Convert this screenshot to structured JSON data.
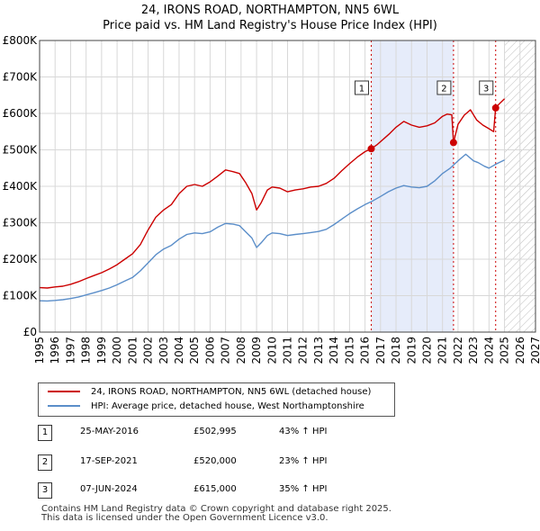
{
  "title": {
    "line1": "24, IRONS ROAD, NORTHAMPTON, NN5 6WL",
    "line2": "Price paid vs. HM Land Registry's House Price Index (HPI)"
  },
  "legend": {
    "property_label": "24, IRONS ROAD, NORTHAMPTON, NN5 6WL (detached house)",
    "hpi_label": "HPI: Average price, detached house, West Northamptonshire"
  },
  "sales": [
    {
      "num": "1",
      "date": "25-MAY-2016",
      "price": "£502,995",
      "hpi": "43% ↑ HPI"
    },
    {
      "num": "2",
      "date": "17-SEP-2021",
      "price": "£520,000",
      "hpi": "23% ↑ HPI"
    },
    {
      "num": "3",
      "date": "07-JUN-2024",
      "price": "£615,000",
      "hpi": "35% ↑ HPI"
    }
  ],
  "footer": {
    "line1": "Contains HM Land Registry data © Crown copyright and database right 2025.",
    "line2": "This data is licensed under the Open Government Licence v3.0."
  },
  "colors": {
    "property": "#cc0000",
    "hpi": "#5b8ec9",
    "shade": "#e6ecfa",
    "grid": "#d8d8d8",
    "marker": "#cc0000"
  },
  "chart_data": {
    "type": "line",
    "title": "Price paid vs. HM Land Registry's House Price Index (HPI)",
    "xlim": [
      1995,
      2027
    ],
    "ylim": [
      0,
      800000
    ],
    "x_ticks": [
      1995,
      1996,
      1997,
      1998,
      1999,
      2000,
      2001,
      2002,
      2003,
      2004,
      2005,
      2006,
      2007,
      2008,
      2009,
      2010,
      2011,
      2012,
      2013,
      2014,
      2015,
      2016,
      2017,
      2018,
      2019,
      2020,
      2021,
      2022,
      2023,
      2024,
      2025,
      2026,
      2027
    ],
    "y_ticks": [
      0,
      100000,
      200000,
      300000,
      400000,
      500000,
      600000,
      700000,
      800000
    ],
    "y_tick_labels": [
      "£0",
      "£100K",
      "£200K",
      "£300K",
      "£400K",
      "£500K",
      "£600K",
      "£700K",
      "£800K"
    ],
    "shaded_region": [
      2016.4,
      2021.71
    ],
    "future_hatch_from": 2025.0,
    "series": [
      {
        "name": "24, IRONS ROAD, NORTHAMPTON, NN5 6WL (detached house)",
        "x": [
          1995,
          1995.5,
          1996,
          1996.5,
          1997,
          1997.5,
          1998,
          1998.5,
          1999,
          1999.5,
          2000,
          2000.5,
          2001,
          2001.5,
          2002,
          2002.5,
          2003,
          2003.5,
          2004,
          2004.5,
          2005,
          2005.5,
          2006,
          2006.5,
          2007,
          2007.5,
          2007.9,
          2008.3,
          2008.7,
          2009.0,
          2009.3,
          2009.7,
          2010,
          2010.5,
          2011,
          2011.5,
          2012,
          2012.5,
          2013,
          2013.5,
          2014,
          2014.5,
          2015,
          2015.5,
          2016,
          2016.4,
          2016.8,
          2017.2,
          2017.6,
          2018,
          2018.5,
          2019,
          2019.5,
          2020,
          2020.5,
          2021,
          2021.3,
          2021.6,
          2021.71,
          2022,
          2022.4,
          2022.8,
          2023.2,
          2023.6,
          2024,
          2024.3,
          2024.43,
          2024.7,
          2025.0
        ],
        "values": [
          122000,
          121000,
          124000,
          126000,
          131000,
          138000,
          147000,
          155000,
          163000,
          173000,
          185000,
          200000,
          215000,
          240000,
          280000,
          315000,
          335000,
          350000,
          380000,
          400000,
          405000,
          400000,
          412000,
          428000,
          445000,
          440000,
          435000,
          410000,
          380000,
          335000,
          355000,
          390000,
          398000,
          395000,
          385000,
          390000,
          393000,
          398000,
          400000,
          408000,
          422000,
          443000,
          462000,
          480000,
          495000,
          503000,
          515000,
          530000,
          545000,
          562000,
          578000,
          568000,
          562000,
          566000,
          574000,
          592000,
          598000,
          596000,
          520000,
          570000,
          595000,
          610000,
          582000,
          568000,
          558000,
          550000,
          615000,
          628000,
          640000
        ]
      },
      {
        "name": "HPI: Average price, detached house, West Northamptonshire",
        "x": [
          1995,
          1995.5,
          1996,
          1996.5,
          1997,
          1997.5,
          1998,
          1998.5,
          1999,
          1999.5,
          2000,
          2000.5,
          2001,
          2001.5,
          2002,
          2002.5,
          2003,
          2003.5,
          2004,
          2004.5,
          2005,
          2005.5,
          2006,
          2006.5,
          2007,
          2007.5,
          2007.9,
          2008.3,
          2008.7,
          2009.0,
          2009.3,
          2009.7,
          2010,
          2010.5,
          2011,
          2011.5,
          2012,
          2012.5,
          2013,
          2013.5,
          2014,
          2014.5,
          2015,
          2015.5,
          2016,
          2016.5,
          2017,
          2017.5,
          2018,
          2018.5,
          2019,
          2019.5,
          2020,
          2020.5,
          2021,
          2021.5,
          2022,
          2022.5,
          2023,
          2023.3,
          2023.7,
          2024,
          2024.5,
          2025.0
        ],
        "values": [
          86000,
          85500,
          87000,
          89000,
          92000,
          96000,
          102000,
          108000,
          114000,
          121000,
          130000,
          140000,
          150000,
          168000,
          190000,
          212000,
          228000,
          238000,
          255000,
          268000,
          272000,
          270000,
          275000,
          288000,
          298000,
          296000,
          292000,
          275000,
          258000,
          232000,
          245000,
          265000,
          272000,
          270000,
          265000,
          268000,
          270000,
          273000,
          276000,
          282000,
          295000,
          310000,
          325000,
          338000,
          350000,
          360000,
          372000,
          385000,
          395000,
          402000,
          398000,
          396000,
          400000,
          415000,
          435000,
          450000,
          470000,
          488000,
          470000,
          465000,
          455000,
          450000,
          462000,
          472000
        ]
      }
    ],
    "sale_points": [
      {
        "label": "1",
        "x": 2016.4,
        "y": 502995
      },
      {
        "label": "2",
        "x": 2021.71,
        "y": 520000
      },
      {
        "label": "3",
        "x": 2024.43,
        "y": 615000
      }
    ]
  }
}
